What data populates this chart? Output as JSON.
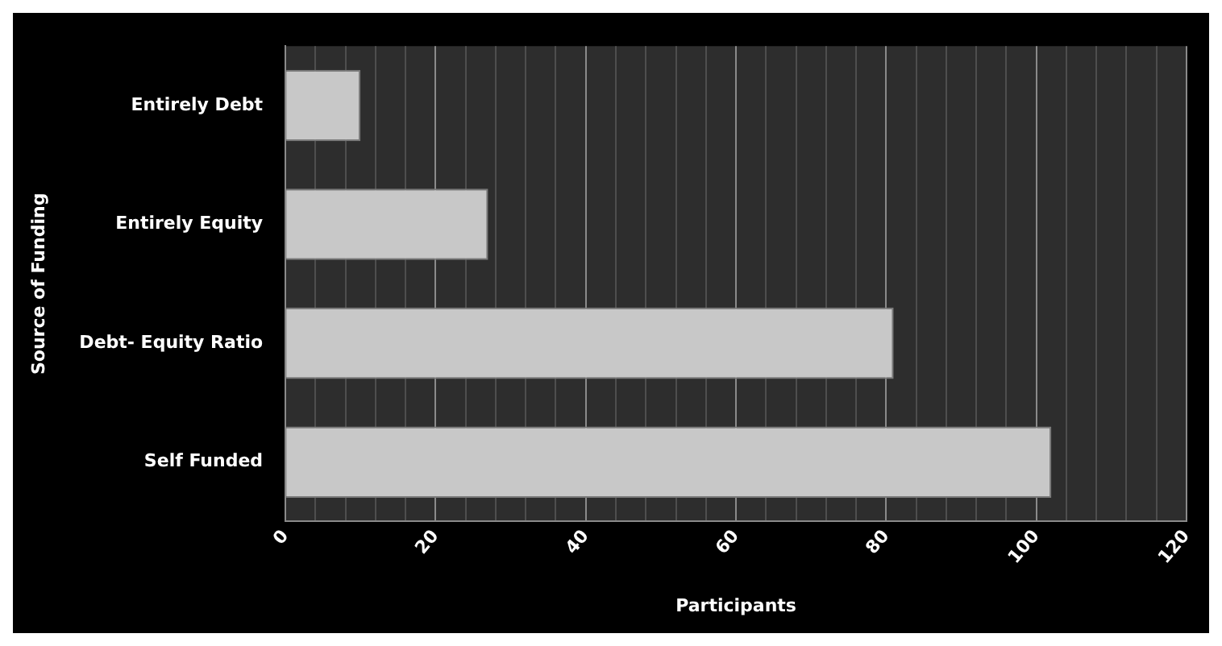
{
  "chart_data": {
    "type": "bar",
    "orientation": "horizontal",
    "xlabel": "Participants",
    "ylabel": "Source of Funding",
    "categories": [
      "Entirely Debt",
      "Entirely Equity",
      "Debt- Equity Ratio",
      "Self Funded"
    ],
    "values": [
      10,
      27,
      81,
      102
    ],
    "color": "#c8c8c8",
    "xlim": [
      0,
      120
    ],
    "xticks": [
      0,
      {
        "value": 4,
        "label": null
      },
      {
        "value": 8,
        "label": null
      },
      {
        "value": 12,
        "label": null
      },
      {
        "value": 16,
        "label": null
      },
      20,
      {
        "value": 24,
        "label": null
      },
      {
        "value": 28,
        "label": null
      },
      {
        "value": 32,
        "label": null
      },
      {
        "value": 36,
        "label": null
      },
      40,
      {
        "value": 44,
        "label": null
      },
      {
        "value": 48,
        "label": null
      },
      {
        "value": 52,
        "label": null
      },
      {
        "value": 56,
        "label": null
      },
      60,
      {
        "value": 64,
        "label": null
      },
      {
        "value": 68,
        "label": null
      },
      {
        "value": 72,
        "label": null
      },
      {
        "value": 76,
        "label": null
      },
      80,
      {
        "value": 84,
        "label": null
      },
      {
        "value": 88,
        "label": null
      },
      {
        "value": 92,
        "label": null
      },
      {
        "value": 96,
        "label": null
      },
      100,
      {
        "value": 104,
        "label": null
      },
      {
        "value": 108,
        "label": null
      },
      {
        "value": 112,
        "label": null
      },
      {
        "value": 116,
        "label": null
      },
      120
    ],
    "grid": "x",
    "legend": false
  }
}
